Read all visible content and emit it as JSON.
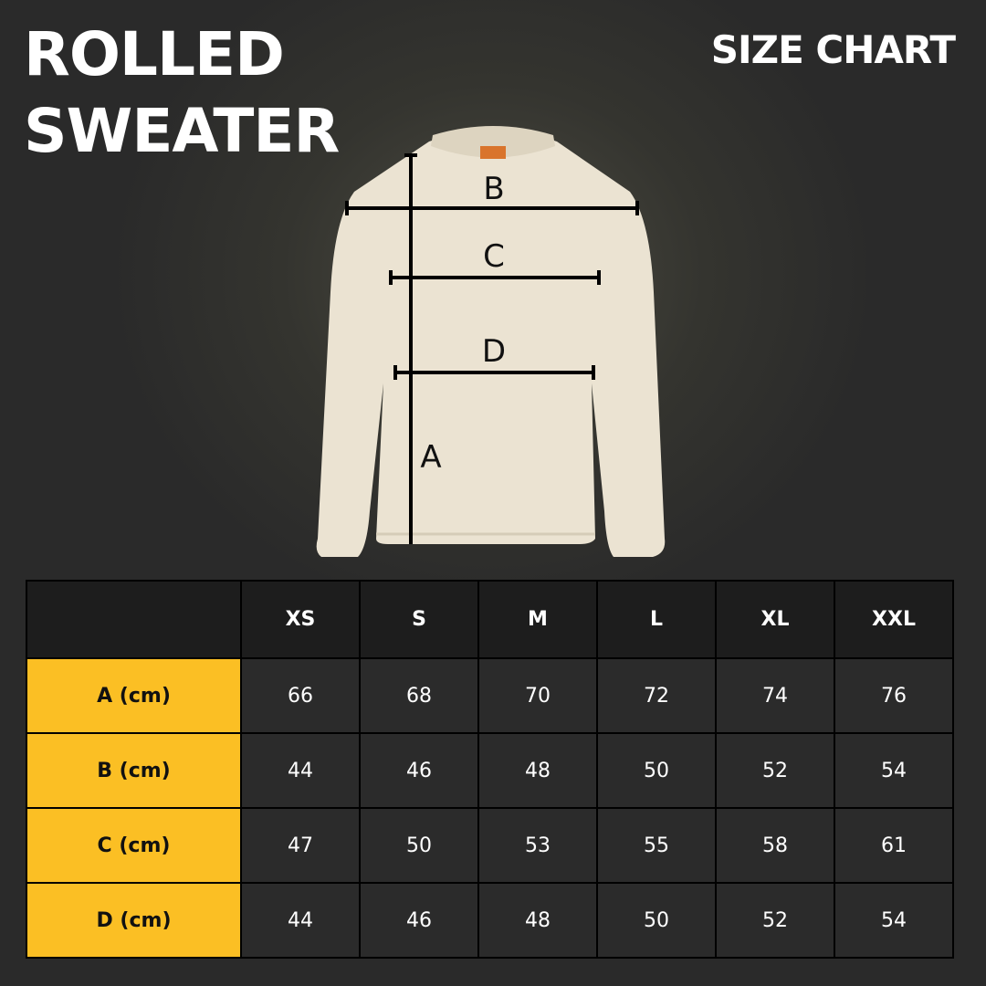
{
  "title_lines": [
    "ROLLED",
    "SWEATER"
  ],
  "subtitle": "SIZE CHART",
  "diagram_labels": {
    "a": "A",
    "b": "B",
    "c": "C",
    "d": "D"
  },
  "colors": {
    "row_label_bg": "#fbbf24",
    "header_bg": "#1d1d1d",
    "cell_bg": "#2b2b2b",
    "sweater": "#ebe3d2"
  },
  "chart_data": {
    "type": "table",
    "columns": [
      "",
      "XS",
      "S",
      "M",
      "L",
      "XL",
      "XXL"
    ],
    "rows": [
      {
        "label": "A (cm)",
        "values": [
          "66",
          "68",
          "70",
          "72",
          "74",
          "76"
        ]
      },
      {
        "label": "B (cm)",
        "values": [
          "44",
          "46",
          "48",
          "50",
          "52",
          "54"
        ]
      },
      {
        "label": "C (cm)",
        "values": [
          "47",
          "50",
          "53",
          "55",
          "58",
          "61"
        ]
      },
      {
        "label": "D (cm)",
        "values": [
          "44",
          "46",
          "48",
          "50",
          "52",
          "54"
        ]
      }
    ]
  }
}
